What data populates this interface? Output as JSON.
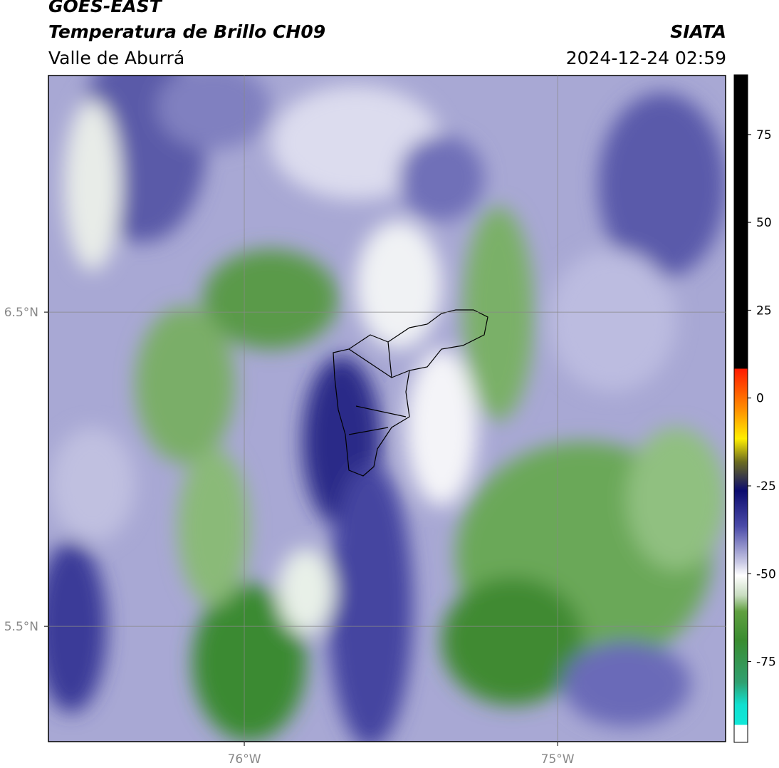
{
  "header": {
    "title": "GOES-EAST",
    "subtitle": "Temperatura de Brillo CH09",
    "region": "Valle de Aburrá",
    "source": "SIATA",
    "timestamp": "2024-12-24 02:59"
  },
  "map": {
    "xlim": [
      -76.625,
      -74.464
    ],
    "ylim": [
      5.133,
      7.253
    ],
    "xticks": [
      {
        "value": -76,
        "label": "76°W"
      },
      {
        "value": -75,
        "label": "75°W"
      }
    ],
    "yticks": [
      {
        "value": 6.5,
        "label": "6.5°N"
      },
      {
        "value": 5.5,
        "label": "5.5°N"
      }
    ]
  },
  "colorbar": {
    "lim": [
      -98,
      92
    ],
    "ticks": [
      75,
      50,
      25,
      0,
      -25,
      -50,
      -75
    ]
  }
}
